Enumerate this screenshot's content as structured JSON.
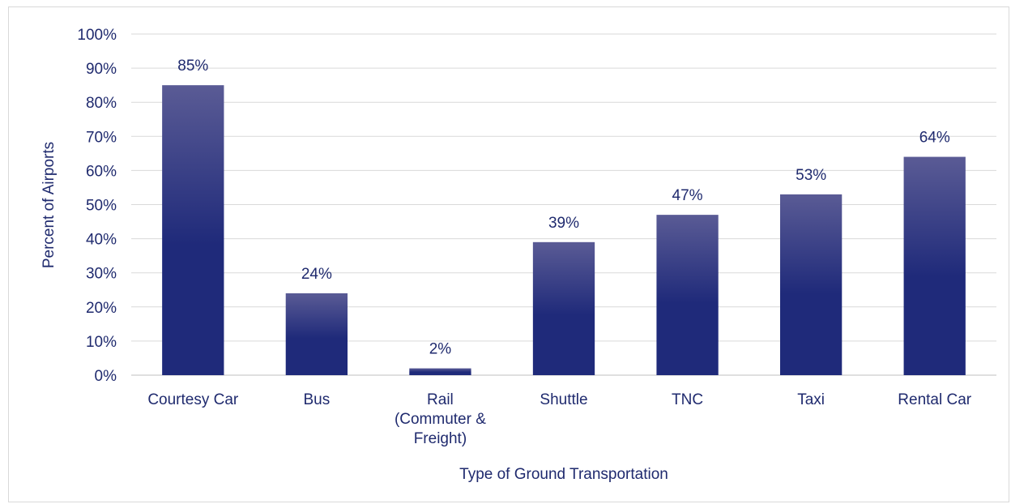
{
  "chart_data": {
    "type": "bar",
    "title": "",
    "xlabel": "Type of Ground Transportation",
    "ylabel": "Percent of Airports",
    "categories": [
      [
        "Courtesy Car"
      ],
      [
        "Bus"
      ],
      [
        "Rail",
        "(Commuter &",
        "Freight)"
      ],
      [
        "Shuttle"
      ],
      [
        "TNC"
      ],
      [
        "Taxi"
      ],
      [
        "Rental Car"
      ]
    ],
    "values": [
      85,
      24,
      2,
      39,
      47,
      53,
      64
    ],
    "value_labels": [
      "85%",
      "24%",
      "2%",
      "39%",
      "47%",
      "53%",
      "64%"
    ],
    "ylim": [
      0,
      100
    ],
    "yticks": [
      0,
      10,
      20,
      30,
      40,
      50,
      60,
      70,
      80,
      90,
      100
    ],
    "ytick_labels": [
      "0%",
      "10%",
      "20%",
      "30%",
      "40%",
      "50%",
      "60%",
      "70%",
      "80%",
      "90%",
      "100%"
    ],
    "grid": true,
    "legend": "none",
    "colors": {
      "bar_top": "#5a5b95",
      "bar_bottom": "#1f2a7a",
      "text": "#1f2a6e",
      "grid": "#d9d9d9",
      "axis": "#bfbfbf"
    }
  }
}
